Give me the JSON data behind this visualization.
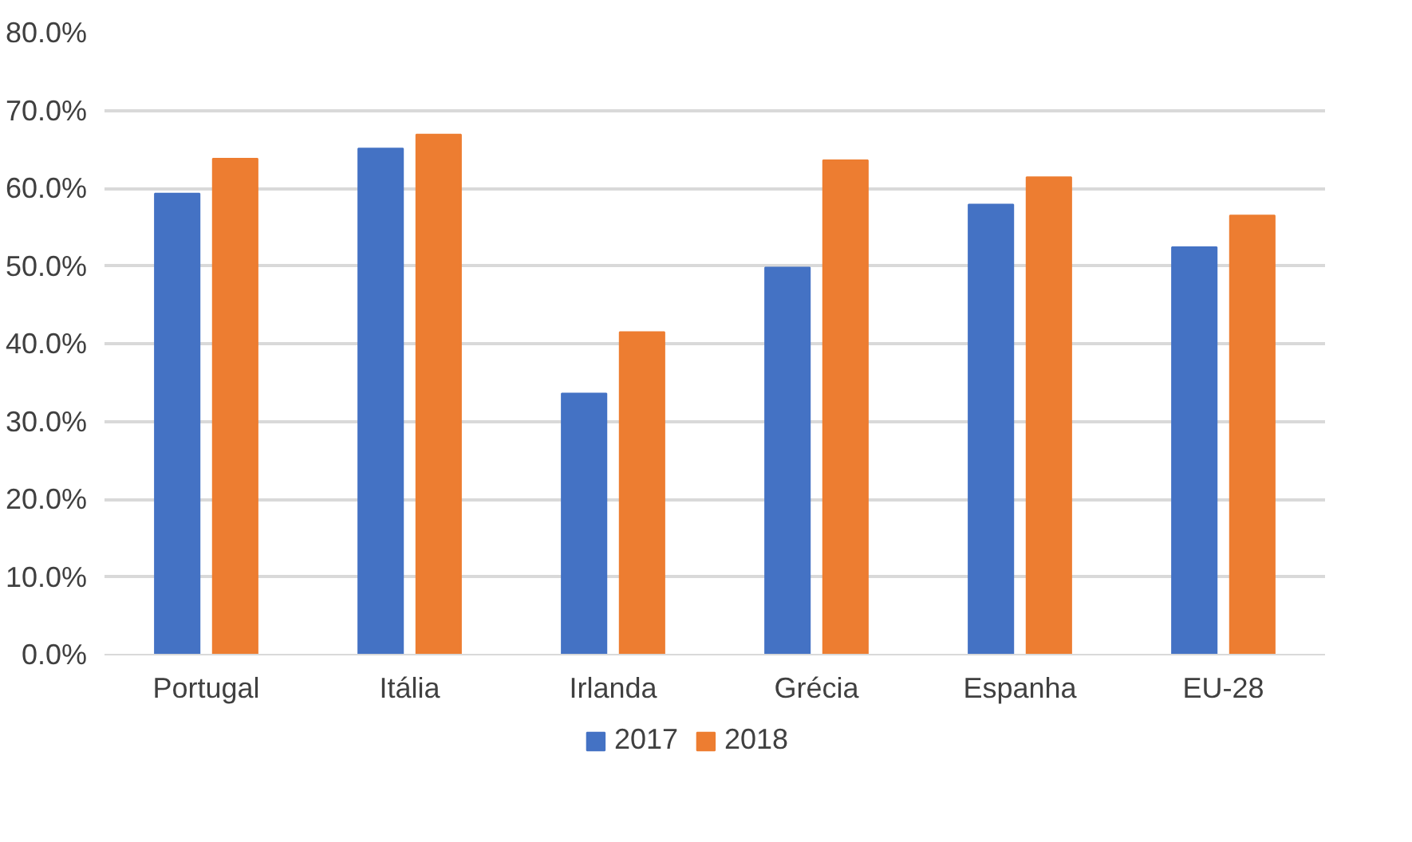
{
  "chart_data": {
    "type": "bar",
    "categories": [
      "Portugal",
      "Itália",
      "Irlanda",
      "Grécia",
      "Espanha",
      "EU-28"
    ],
    "series": [
      {
        "name": "2017",
        "color": "#4472c4",
        "values": [
          59.3,
          65.1,
          33.6,
          49.8,
          57.9,
          52.4
        ]
      },
      {
        "name": "2018",
        "color": "#ed7d31",
        "values": [
          63.8,
          66.9,
          41.5,
          63.6,
          61.4,
          56.5
        ]
      }
    ],
    "ylim": [
      0,
      80
    ],
    "yticks": [
      {
        "value": 0,
        "label": "0.0%"
      },
      {
        "value": 10,
        "label": "10.0%"
      },
      {
        "value": 20,
        "label": "20.0%"
      },
      {
        "value": 30,
        "label": "30.0%"
      },
      {
        "value": 40,
        "label": "40.0%"
      },
      {
        "value": 50,
        "label": "50.0%"
      },
      {
        "value": 60,
        "label": "60.0%"
      },
      {
        "value": 70,
        "label": "70.0%"
      },
      {
        "value": 80,
        "label": "80.0%"
      }
    ],
    "grid": "y",
    "legend": "bottom"
  }
}
